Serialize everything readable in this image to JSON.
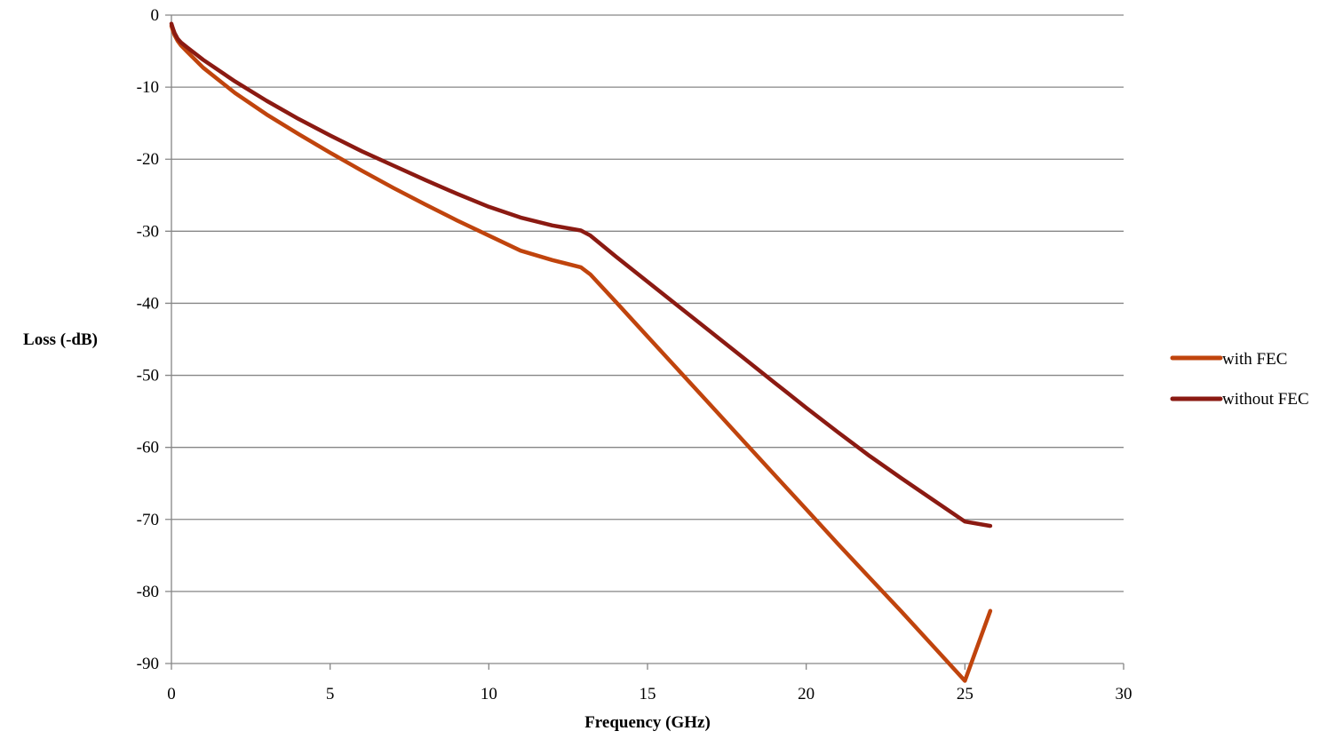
{
  "chart_data": {
    "type": "line",
    "title": "",
    "xlabel": "Frequency (GHz)",
    "ylabel": "Loss (-dB)",
    "xlim": [
      0,
      30
    ],
    "ylim": [
      -90,
      0
    ],
    "xticks": [
      0,
      5,
      10,
      15,
      20,
      25,
      30
    ],
    "yticks": [
      0,
      -10,
      -20,
      -30,
      -40,
      -50,
      -60,
      -70,
      -80,
      -90
    ],
    "grid": "horizontal",
    "legend_position": "right",
    "series": [
      {
        "name": "with FEC",
        "color": "#c0440d",
        "x": [
          0,
          0.05,
          0.1,
          0.2,
          0.3,
          0.5,
          1,
          2,
          3,
          4,
          5,
          6,
          7,
          8,
          9,
          10,
          11,
          12,
          12.9,
          13.2,
          14,
          15,
          16,
          17,
          18,
          19,
          20,
          21,
          22,
          23,
          24,
          25,
          25.8
        ],
        "y": [
          -1.5,
          -2.2,
          -2.8,
          -3.6,
          -4.2,
          -5.1,
          -7.3,
          -10.8,
          -13.8,
          -16.5,
          -19.1,
          -21.6,
          -24,
          -26.3,
          -28.5,
          -30.6,
          -32.7,
          -34,
          -35,
          -36,
          -39.8,
          -44.6,
          -49.4,
          -54.2,
          -59,
          -63.8,
          -68.6,
          -73.4,
          -78.1,
          -82.8,
          -87.6,
          -92.4,
          -82.7
        ]
      },
      {
        "name": "without FEC",
        "color": "#8b1a12",
        "x": [
          0,
          0.05,
          0.1,
          0.2,
          0.3,
          0.5,
          1,
          2,
          3,
          4,
          5,
          6,
          7,
          8,
          9,
          10,
          11,
          12,
          12.9,
          13.2,
          14,
          15,
          16,
          17,
          18,
          19,
          20,
          21,
          22,
          23,
          24,
          25,
          25.8
        ],
        "y": [
          -1.2,
          -1.9,
          -2.5,
          -3.3,
          -3.8,
          -4.5,
          -6.2,
          -9.2,
          -11.9,
          -14.4,
          -16.7,
          -18.9,
          -20.9,
          -22.9,
          -24.8,
          -26.6,
          -28.1,
          -29.2,
          -29.9,
          -30.6,
          -33.5,
          -37,
          -40.5,
          -44,
          -47.5,
          -51,
          -54.5,
          -57.9,
          -61.2,
          -64.3,
          -67.3,
          -70.3,
          -70.9
        ]
      }
    ]
  }
}
